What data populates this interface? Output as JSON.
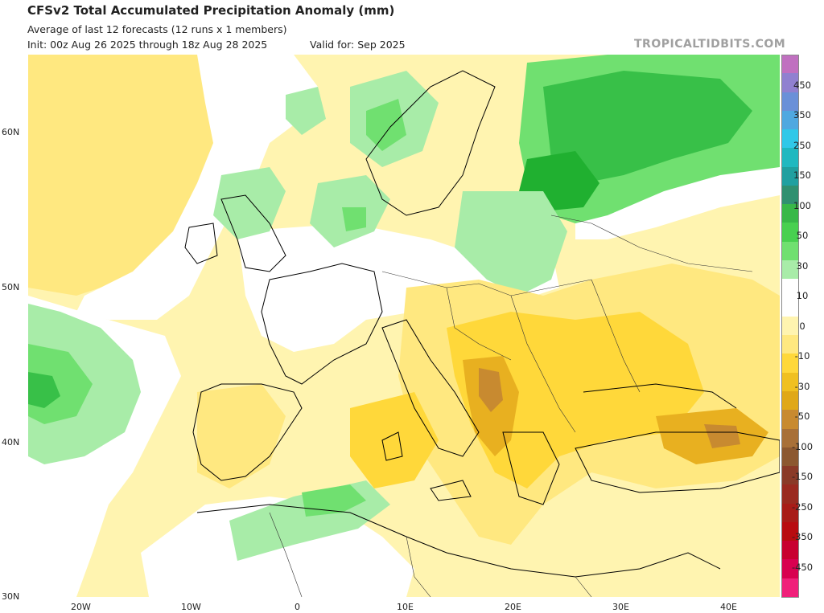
{
  "header": {
    "title": "CFSv2 Total Accumulated Precipitation Anomaly (mm)",
    "subtitle": "Average of last 12 forecasts (12 runs x 1 members)",
    "init": "Init: 00z Aug 26 2025 through 18z Aug 28 2025",
    "valid": "Valid for: Sep 2025",
    "brand": "TROPICALTIDBITS.COM"
  },
  "axes": {
    "lat_labels": [
      "60N",
      "50N",
      "40N",
      "30N"
    ],
    "lon_labels": [
      "20W",
      "10W",
      "0",
      "10E",
      "20E",
      "30E",
      "40E"
    ]
  },
  "colorbar": {
    "labels": [
      "450",
      "350",
      "250",
      "150",
      "100",
      "50",
      "30",
      "10",
      "0",
      "-10",
      "-30",
      "-50",
      "-100",
      "-150",
      "-250",
      "-350",
      "-450"
    ],
    "colors": [
      "#c070c0",
      "#9080d0",
      "#6a90d8",
      "#50a8e0",
      "#30c8e8",
      "#20b8c0",
      "#20a0a0",
      "#309070",
      "#38b848",
      "#48d050",
      "#70e070",
      "#a8eca8",
      "#ffffff",
      "#ffffff",
      "#fff4b0",
      "#ffe880",
      "#ffd83a",
      "#f0c020",
      "#e0a818",
      "#c88a30",
      "#a87038",
      "#8c5830",
      "#8a3a28",
      "#9a2a20",
      "#a81c18",
      "#b80c10",
      "#c80030",
      "#d80050",
      "#f0207a"
    ]
  },
  "legend_colors": {
    "wet_light": "#a8eca8",
    "wet_mid": "#70e070",
    "wet_strong": "#38c048",
    "wet_max": "#20b030",
    "dry_light": "#fff4b0",
    "dry_mid": "#ffe880",
    "dry_strong": "#ffd83a",
    "dry_max": "#e8b020",
    "dry_extreme": "#c88a30",
    "land_border": "#000000"
  }
}
